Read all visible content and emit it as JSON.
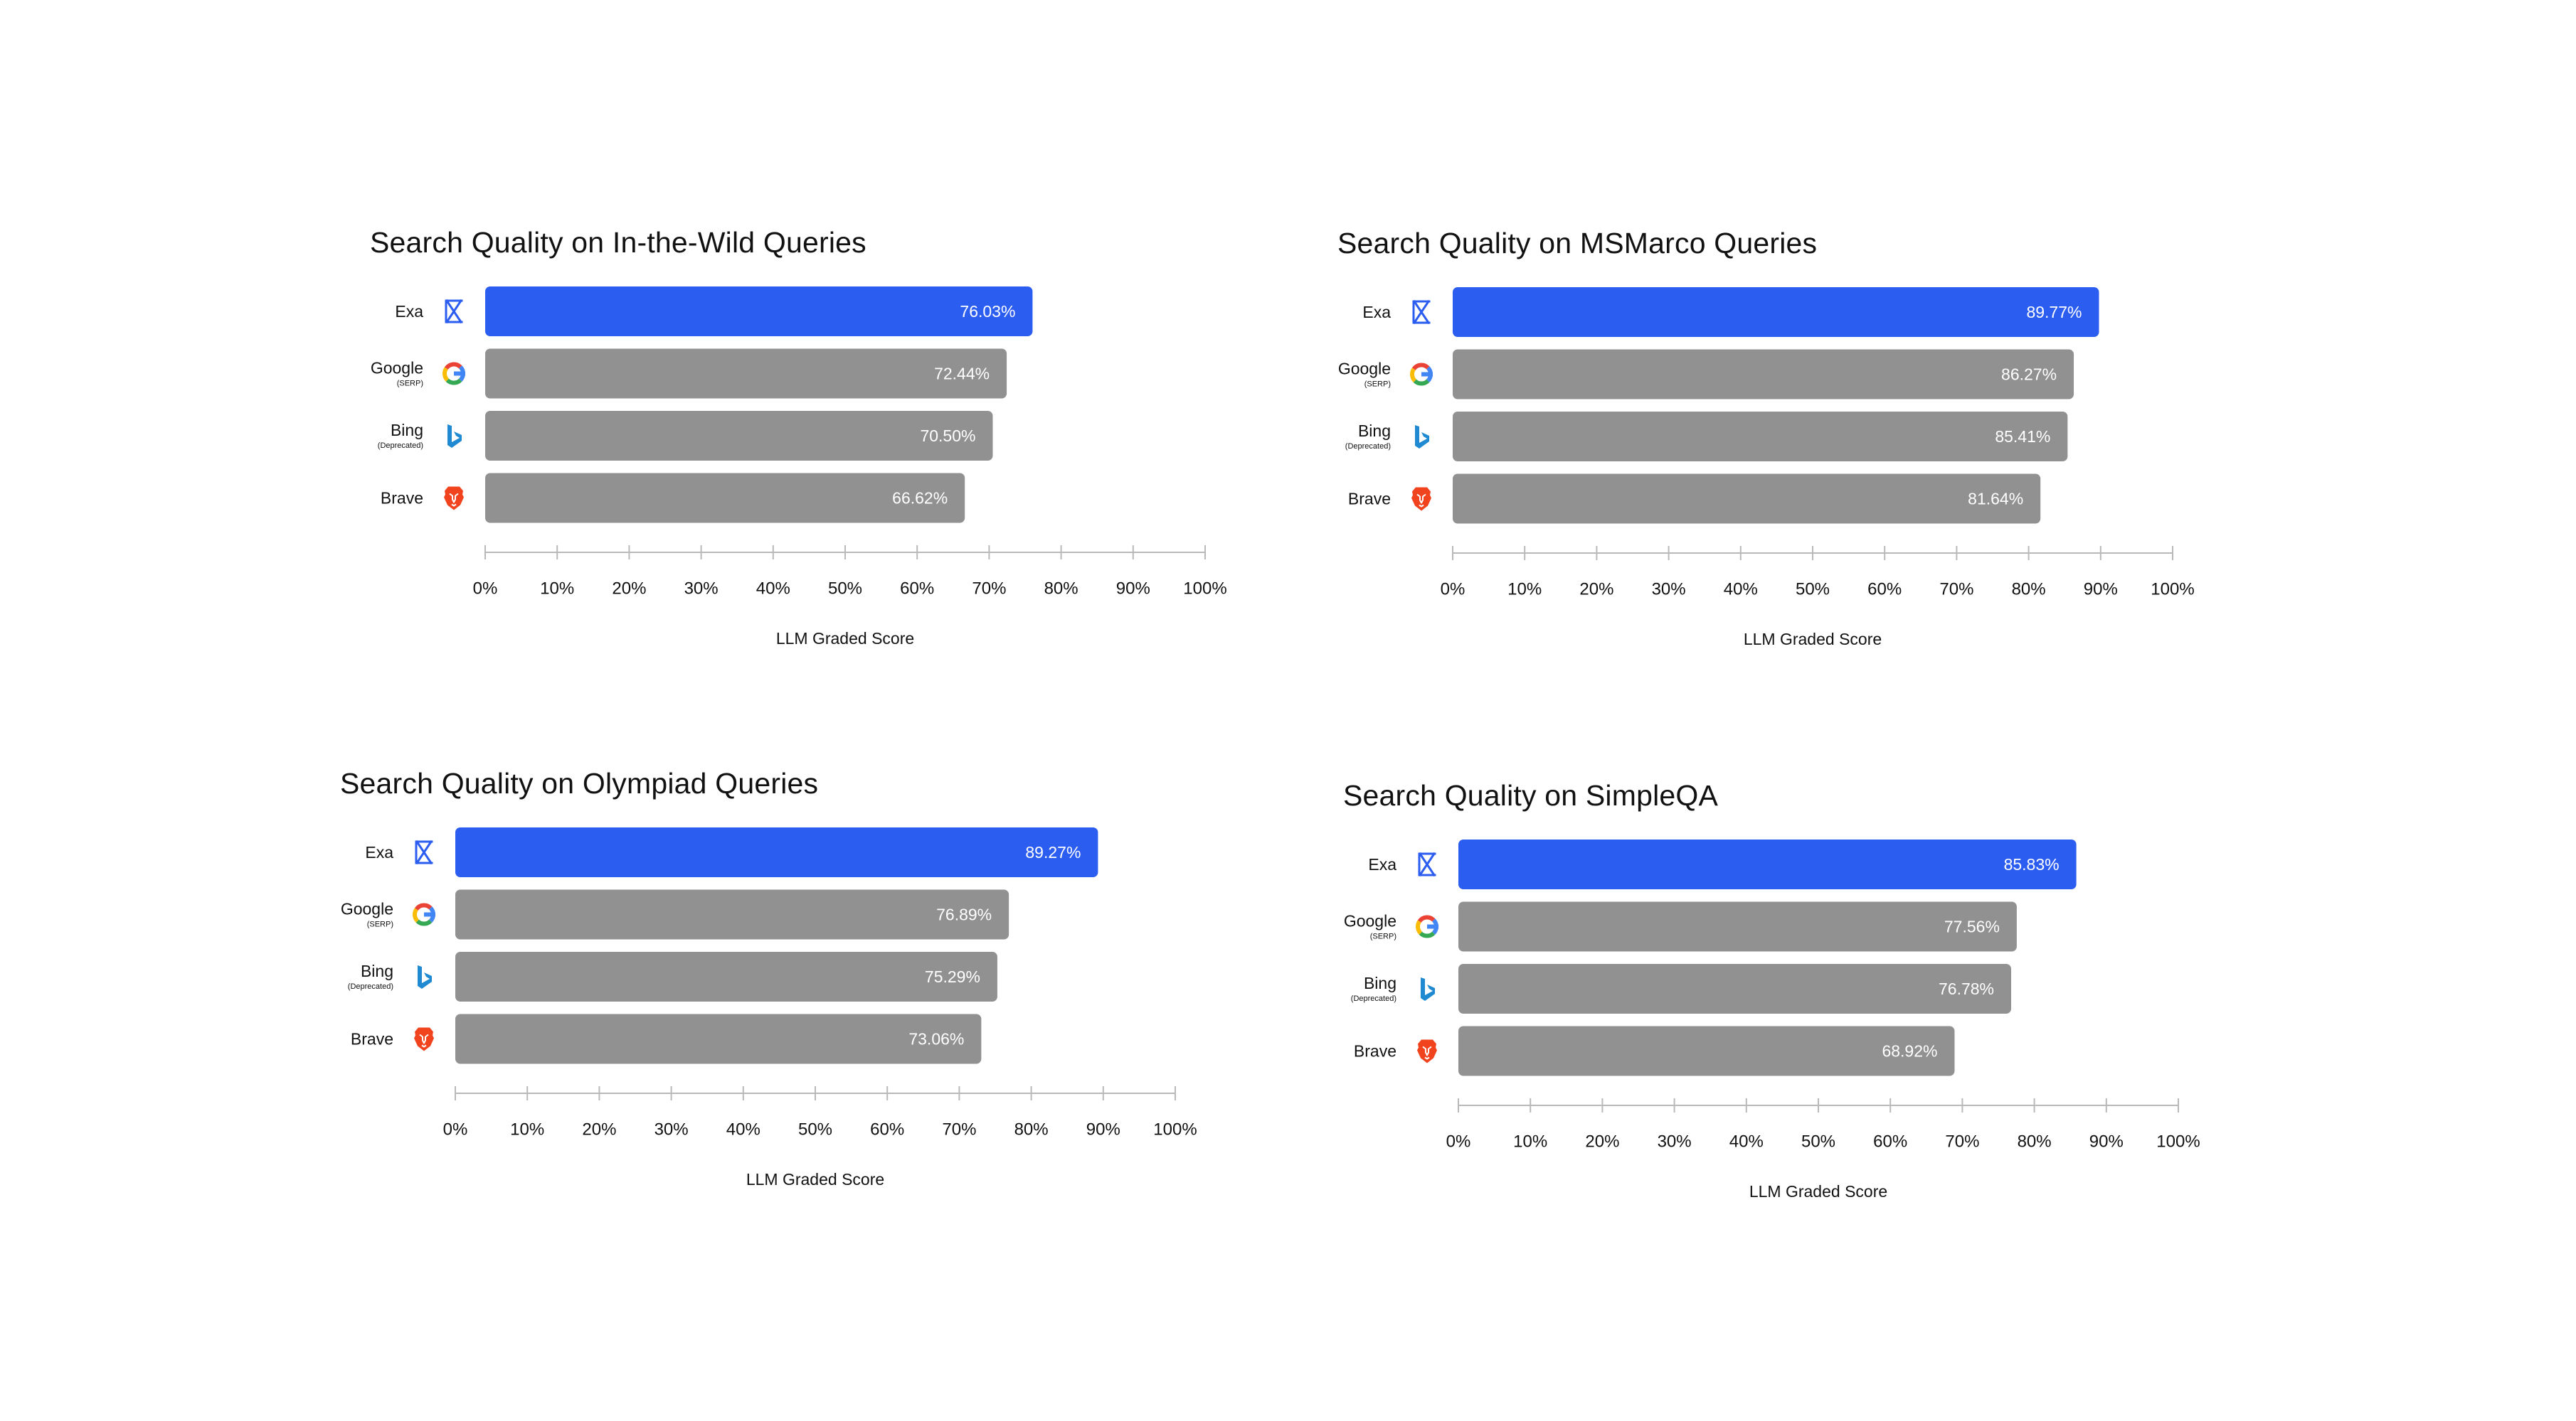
{
  "colors": {
    "highlight": "#2b5df1",
    "bar": "#919191",
    "axis": "#b9b9b9",
    "google_blue": "#4285F4",
    "google_red": "#EA4335",
    "google_yellow": "#FBBC05",
    "google_green": "#34A853",
    "bing": "#1f8ad2",
    "brave": "#f0431e"
  },
  "chart_data": [
    {
      "type": "bar",
      "orientation": "horizontal",
      "title": "Search Quality on In-the-Wild Queries",
      "categories": [
        "Exa",
        "Google",
        "Bing",
        "Brave"
      ],
      "subtitles": [
        "",
        "(SERP)",
        "(Deprecated)",
        ""
      ],
      "icons": [
        "exa-icon",
        "google-icon",
        "bing-icon",
        "brave-icon"
      ],
      "values": [
        76.03,
        72.44,
        70.5,
        66.62
      ],
      "value_labels": [
        "76.03%",
        "72.44%",
        "70.50%",
        "66.62%"
      ],
      "xlim": [
        0,
        100
      ],
      "xticks": [
        "0%",
        "10%",
        "20%",
        "30%",
        "40%",
        "50%",
        "60%",
        "70%",
        "80%",
        "90%",
        "100%"
      ],
      "xlabel": "LLM Graded Score",
      "highlight_index": 0
    },
    {
      "type": "bar",
      "orientation": "horizontal",
      "title": "Search Quality on MSMarco Queries",
      "categories": [
        "Exa",
        "Google",
        "Bing",
        "Brave"
      ],
      "subtitles": [
        "",
        "(SERP)",
        "(Deprecated)",
        ""
      ],
      "icons": [
        "exa-icon",
        "google-icon",
        "bing-icon",
        "brave-icon"
      ],
      "values": [
        89.77,
        86.27,
        85.41,
        81.64
      ],
      "value_labels": [
        "89.77%",
        "86.27%",
        "85.41%",
        "81.64%"
      ],
      "xlim": [
        0,
        100
      ],
      "xticks": [
        "0%",
        "10%",
        "20%",
        "30%",
        "40%",
        "50%",
        "60%",
        "70%",
        "80%",
        "90%",
        "100%"
      ],
      "xlabel": "LLM Graded Score",
      "highlight_index": 0
    },
    {
      "type": "bar",
      "orientation": "horizontal",
      "title": "Search Quality on Olympiad Queries",
      "categories": [
        "Exa",
        "Google",
        "Bing",
        "Brave"
      ],
      "subtitles": [
        "",
        "(SERP)",
        "(Deprecated)",
        ""
      ],
      "icons": [
        "exa-icon",
        "google-icon",
        "bing-icon",
        "brave-icon"
      ],
      "values": [
        89.27,
        76.89,
        75.29,
        73.06
      ],
      "value_labels": [
        "89.27%",
        "76.89%",
        "75.29%",
        "73.06%"
      ],
      "xlim": [
        0,
        100
      ],
      "xticks": [
        "0%",
        "10%",
        "20%",
        "30%",
        "40%",
        "50%",
        "60%",
        "70%",
        "80%",
        "90%",
        "100%"
      ],
      "xlabel": "LLM Graded Score",
      "highlight_index": 0
    },
    {
      "type": "bar",
      "orientation": "horizontal",
      "title": "Search Quality on SimpleQA",
      "categories": [
        "Exa",
        "Google",
        "Bing",
        "Brave"
      ],
      "subtitles": [
        "",
        "(SERP)",
        "(Deprecated)",
        ""
      ],
      "icons": [
        "exa-icon",
        "google-icon",
        "bing-icon",
        "brave-icon"
      ],
      "values": [
        85.83,
        77.56,
        76.78,
        68.92
      ],
      "value_labels": [
        "85.83%",
        "77.56%",
        "76.78%",
        "68.92%"
      ],
      "xlim": [
        0,
        100
      ],
      "xticks": [
        "0%",
        "10%",
        "20%",
        "30%",
        "40%",
        "50%",
        "60%",
        "70%",
        "80%",
        "90%",
        "100%"
      ],
      "xlabel": "LLM Graded Score",
      "highlight_index": 0
    }
  ]
}
